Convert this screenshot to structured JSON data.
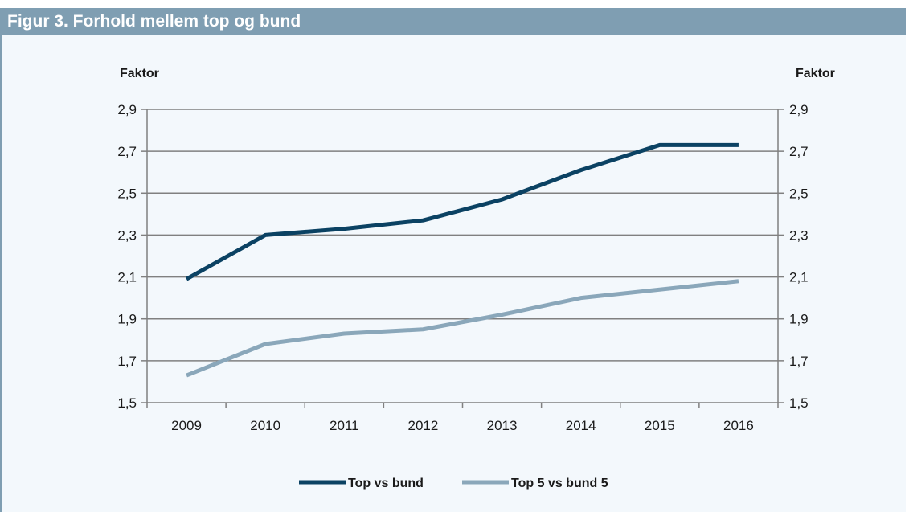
{
  "figure": {
    "title": "Figur 3. Forhold mellem top og bund"
  },
  "colors": {
    "title_bar": "#7f9eb2",
    "panel_bg": "#f3f8fc",
    "series_dark": "#0b4263",
    "series_light": "#8aa7ba",
    "grid": "#808080"
  },
  "chart_data": {
    "type": "line",
    "title": "Figur 3. Forhold mellem top og bund",
    "ylabel_left": "Faktor",
    "ylabel_right": "Faktor",
    "xlabel": "",
    "x": [
      "2009",
      "2010",
      "2011",
      "2012",
      "2013",
      "2014",
      "2015",
      "2016"
    ],
    "ylim": [
      1.5,
      2.9
    ],
    "yticks": [
      "1,5",
      "1,7",
      "1,9",
      "2,1",
      "2,3",
      "2,5",
      "2,7",
      "2,9"
    ],
    "ytick_values": [
      1.5,
      1.7,
      1.9,
      2.1,
      2.3,
      2.5,
      2.7,
      2.9
    ],
    "grid": true,
    "legend_position": "bottom",
    "series": [
      {
        "name": "Top vs bund",
        "color": "#0b4263",
        "values": [
          2.09,
          2.3,
          2.33,
          2.37,
          2.47,
          2.61,
          2.73,
          2.73
        ]
      },
      {
        "name": "Top 5 vs bund 5",
        "color": "#8aa7ba",
        "values": [
          1.63,
          1.78,
          1.83,
          1.85,
          1.92,
          2.0,
          2.04,
          2.08
        ]
      }
    ]
  }
}
